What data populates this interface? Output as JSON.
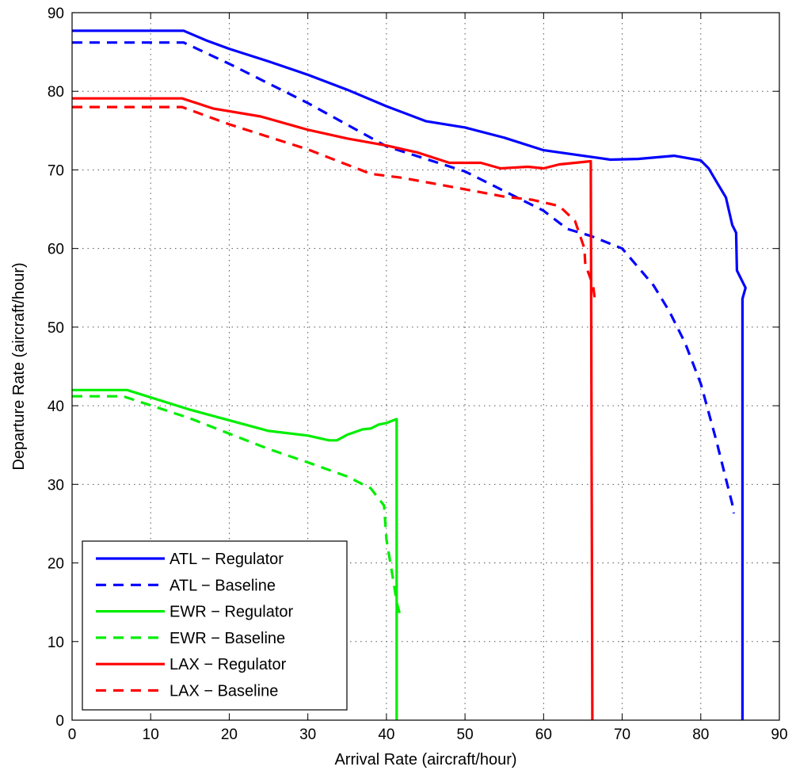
{
  "chart_data": {
    "type": "line",
    "title": "",
    "xlabel": "Arrival Rate (aircraft/hour)",
    "ylabel": "Departure Rate (aircraft/hour)",
    "xlim": [
      0,
      90
    ],
    "ylim": [
      0,
      90
    ],
    "xticks": [
      0,
      10,
      20,
      30,
      40,
      50,
      60,
      70,
      80,
      90
    ],
    "yticks": [
      0,
      10,
      20,
      30,
      40,
      50,
      60,
      70,
      80,
      90
    ],
    "grid": true,
    "legend_position": "bottom-left",
    "series": [
      {
        "name": "ATL − Regulator",
        "color": "#0000ff",
        "style": "solid",
        "points": [
          [
            0,
            87.7
          ],
          [
            14.2,
            87.7
          ],
          [
            17,
            86.5
          ],
          [
            20,
            85.4
          ],
          [
            25,
            83.8
          ],
          [
            30,
            82.1
          ],
          [
            35,
            80.2
          ],
          [
            40,
            78.1
          ],
          [
            45,
            76.2
          ],
          [
            50,
            75.4
          ],
          [
            55,
            74.1
          ],
          [
            60,
            72.5
          ],
          [
            65,
            71.8
          ],
          [
            68.5,
            71.3
          ],
          [
            72,
            71.4
          ],
          [
            76.6,
            71.8
          ],
          [
            80,
            71.2
          ],
          [
            81,
            70.2
          ],
          [
            82,
            68.5
          ],
          [
            83.2,
            66.5
          ],
          [
            84,
            63
          ],
          [
            84.5,
            62
          ],
          [
            84.6,
            57.2
          ],
          [
            85.7,
            55
          ],
          [
            85.3,
            53.6
          ],
          [
            85.3,
            0
          ]
        ]
      },
      {
        "name": "ATL − Baseline",
        "color": "#0000ff",
        "style": "dashed",
        "points": [
          [
            0,
            86.2
          ],
          [
            14.2,
            86.2
          ],
          [
            20,
            83.5
          ],
          [
            30,
            78.5
          ],
          [
            40,
            73
          ],
          [
            50,
            69.8
          ],
          [
            55,
            67.3
          ],
          [
            60,
            64.8
          ],
          [
            63,
            62.5
          ],
          [
            66,
            61.6
          ],
          [
            70,
            60
          ],
          [
            74,
            55.3
          ],
          [
            76,
            52
          ],
          [
            78,
            48
          ],
          [
            80,
            42.8
          ],
          [
            82,
            35.5
          ],
          [
            83,
            31.5
          ],
          [
            84,
            27.5
          ],
          [
            84.2,
            26.3
          ]
        ]
      },
      {
        "name": "EWR − Regulator",
        "color": "#00ee00",
        "style": "solid",
        "points": [
          [
            0,
            42
          ],
          [
            7,
            42
          ],
          [
            15,
            39.5
          ],
          [
            25,
            36.8
          ],
          [
            30,
            36.2
          ],
          [
            32.7,
            35.6
          ],
          [
            33.7,
            35.6
          ],
          [
            35,
            36.3
          ],
          [
            37,
            37
          ],
          [
            38,
            37.1
          ],
          [
            39,
            37.6
          ],
          [
            40,
            37.8
          ],
          [
            41.3,
            38.3
          ],
          [
            41.3,
            0
          ]
        ]
      },
      {
        "name": "EWR − Baseline",
        "color": "#00ee00",
        "style": "dashed",
        "points": [
          [
            0,
            41.2
          ],
          [
            6.5,
            41.2
          ],
          [
            15,
            38.4
          ],
          [
            25,
            34.5
          ],
          [
            30,
            32.8
          ],
          [
            35,
            31
          ],
          [
            38,
            29.5
          ],
          [
            39.7,
            27.3
          ],
          [
            40,
            23
          ],
          [
            40.5,
            20
          ],
          [
            41,
            17
          ],
          [
            41.3,
            15
          ],
          [
            41.7,
            13.5
          ],
          [
            41.3,
            14.8
          ]
        ]
      },
      {
        "name": "LAX − Regulator",
        "color": "#ff0000",
        "style": "solid",
        "points": [
          [
            0,
            79.1
          ],
          [
            14,
            79.1
          ],
          [
            18,
            77.8
          ],
          [
            24,
            76.8
          ],
          [
            30,
            75.1
          ],
          [
            35,
            74
          ],
          [
            40,
            73.1
          ],
          [
            44,
            72.2
          ],
          [
            48,
            70.9
          ],
          [
            52,
            70.9
          ],
          [
            54.5,
            70.2
          ],
          [
            58,
            70.4
          ],
          [
            60,
            70.2
          ],
          [
            62,
            70.7
          ],
          [
            66,
            71.1
          ],
          [
            66.2,
            0
          ]
        ]
      },
      {
        "name": "LAX − Baseline",
        "color": "#ff0000",
        "style": "dashed",
        "points": [
          [
            0,
            78
          ],
          [
            14,
            78
          ],
          [
            20,
            75.8
          ],
          [
            30,
            72.6
          ],
          [
            38,
            69.5
          ],
          [
            42,
            69
          ],
          [
            48,
            67.9
          ],
          [
            55,
            66.6
          ],
          [
            58.5,
            66.2
          ],
          [
            62,
            65.4
          ],
          [
            64,
            63.5
          ],
          [
            65.2,
            60
          ],
          [
            65.3,
            58
          ],
          [
            66.3,
            55.3
          ],
          [
            66.5,
            53.7
          ]
        ]
      }
    ]
  }
}
